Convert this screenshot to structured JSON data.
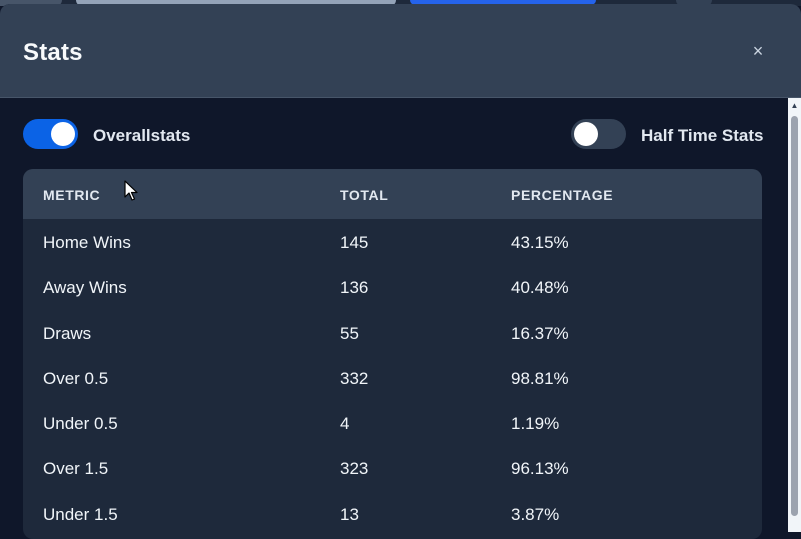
{
  "modal": {
    "title": "Stats",
    "close_label": "×"
  },
  "toggles": [
    {
      "label": "Overallstats",
      "on": true
    },
    {
      "label": "Half Time Stats",
      "on": false
    }
  ],
  "table": {
    "headers": [
      "METRIC",
      "TOTAL",
      "PERCENTAGE"
    ],
    "rows": [
      {
        "metric": "Home Wins",
        "total": "145",
        "percentage": "43.15%"
      },
      {
        "metric": "Away Wins",
        "total": "136",
        "percentage": "40.48%"
      },
      {
        "metric": "Draws",
        "total": "55",
        "percentage": "16.37%"
      },
      {
        "metric": "Over 0.5",
        "total": "332",
        "percentage": "98.81%"
      },
      {
        "metric": "Under 0.5",
        "total": "4",
        "percentage": "1.19%"
      },
      {
        "metric": "Over 1.5",
        "total": "323",
        "percentage": "96.13%"
      },
      {
        "metric": "Under 1.5",
        "total": "13",
        "percentage": "3.87%"
      }
    ]
  },
  "colors": {
    "accent": "#0b63e6",
    "header_bg": "#334155",
    "panel_bg": "#1e293b",
    "page_bg": "#0f172a"
  },
  "icons": {
    "close": "close-icon",
    "scroll_up": "chevron-up-icon",
    "cursor": "mouse-pointer-icon"
  }
}
